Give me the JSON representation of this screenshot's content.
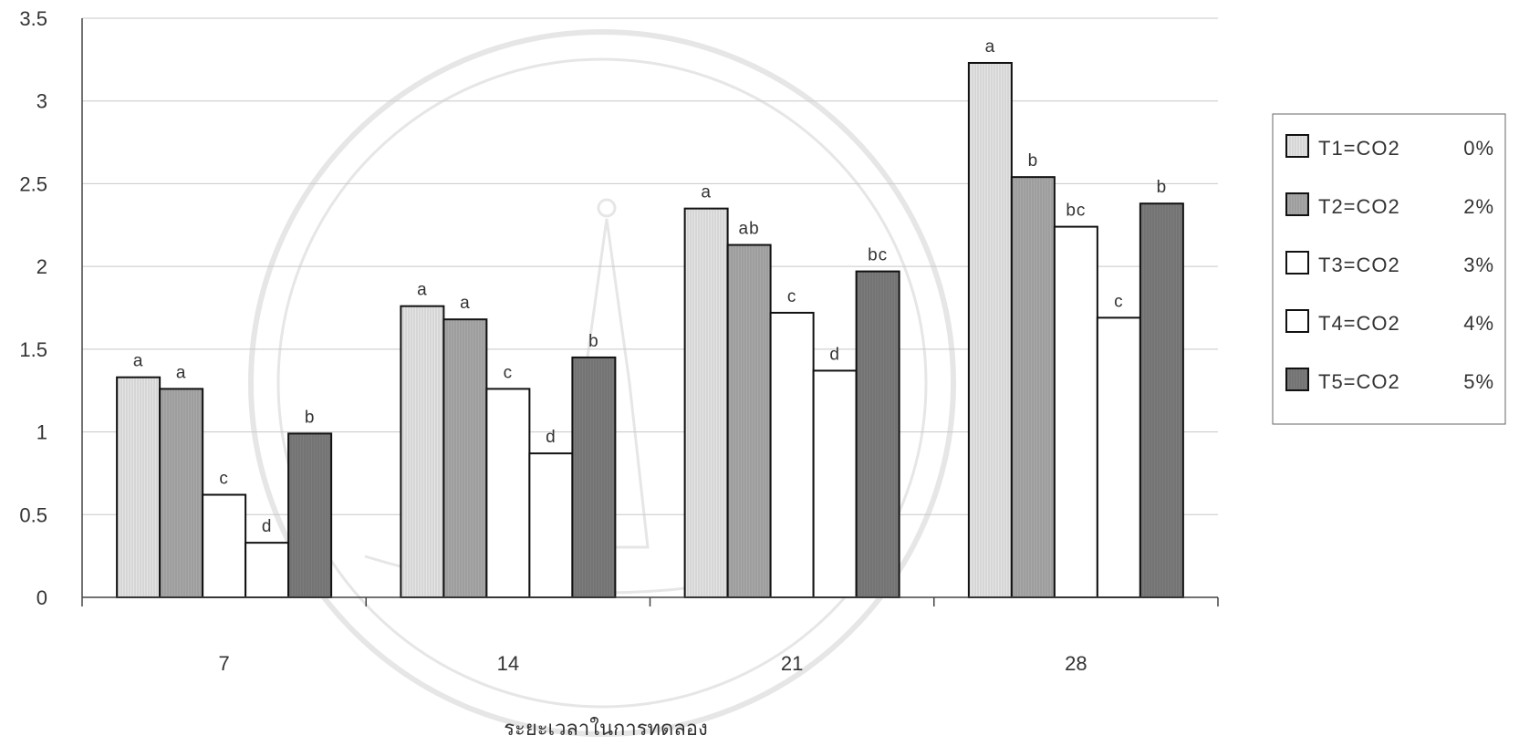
{
  "chart_data": {
    "type": "bar",
    "categories": [
      "7",
      "14",
      "21",
      "28"
    ],
    "series": [
      {
        "name": "T1=CO2 0%",
        "legend_name": "T1=CO2",
        "legend_pct": "0%",
        "color": "#e4e4e4",
        "values": [
          1.33,
          1.76,
          2.35,
          3.23
        ],
        "labels": [
          "a",
          "a",
          "a",
          "a"
        ]
      },
      {
        "name": "T2=CO2 2%",
        "legend_name": "T2=CO2",
        "legend_pct": "2%",
        "color": "#a8a8a8",
        "values": [
          1.26,
          1.68,
          2.13,
          2.54
        ],
        "labels": [
          "a",
          "a",
          "ab",
          "b"
        ]
      },
      {
        "name": "T3=CO2 3%",
        "legend_name": "T3=CO2",
        "legend_pct": "3%",
        "color": "#ffffff",
        "values": [
          0.62,
          1.26,
          1.72,
          2.24
        ],
        "labels": [
          "c",
          "c",
          "c",
          "bc"
        ]
      },
      {
        "name": "T4=CO2 4%",
        "legend_name": "T4=CO2",
        "legend_pct": "4%",
        "color": "#ffffff",
        "values": [
          0.33,
          0.87,
          1.37,
          1.69
        ],
        "labels": [
          "d",
          "d",
          "d",
          "c"
        ]
      },
      {
        "name": "T5=CO2 5%",
        "legend_name": "T5=CO2",
        "legend_pct": "5%",
        "color": "#7c7c7c",
        "values": [
          0.99,
          1.45,
          1.97,
          2.38
        ],
        "labels": [
          "b",
          "b",
          "bc",
          "b"
        ]
      }
    ],
    "title": "",
    "xlabel": "ระยะเวลาในการทดลอง",
    "ylabel": "",
    "ylim": [
      0,
      3.5
    ],
    "yticks": [
      "0",
      "0.5",
      "1",
      "1.5",
      "2",
      "2.5",
      "3",
      "3.5"
    ],
    "grid": true,
    "legend": "right"
  }
}
